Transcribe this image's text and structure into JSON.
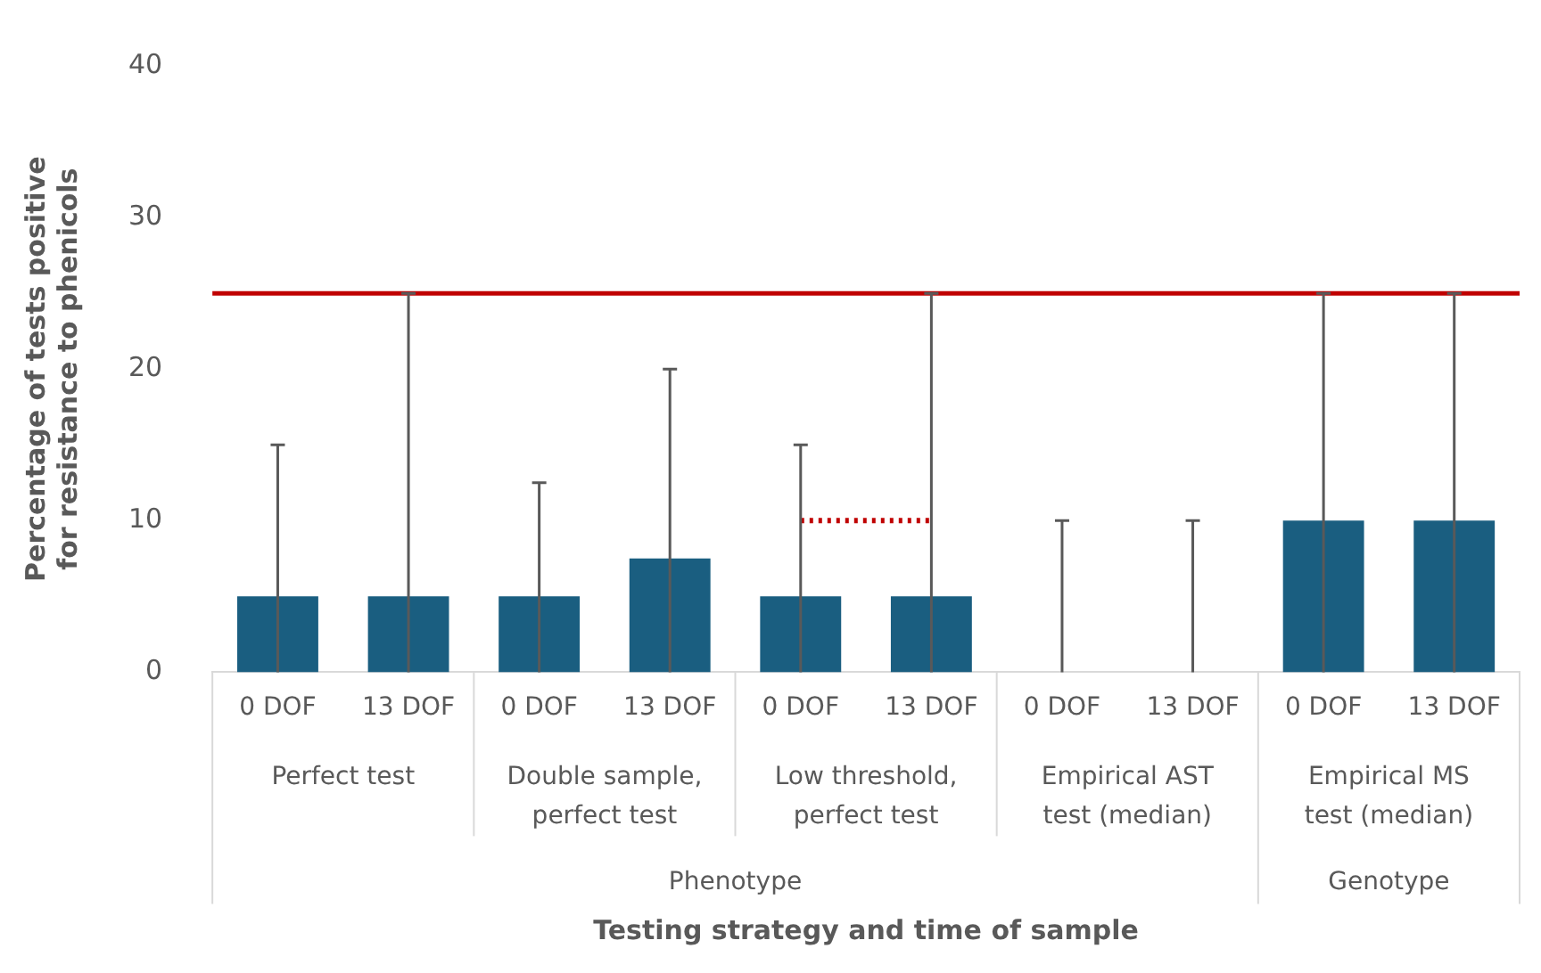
{
  "chart_data": {
    "type": "bar",
    "ylabel": "Percentage of tests positive for resistance to phenicols",
    "categories": [
      "0 DOF",
      "13 DOF",
      "0 DOF",
      "13 DOF",
      "0 DOF",
      "13 DOF",
      "0 DOF",
      "13 DOF",
      "0 DOF",
      "13 DOF"
    ],
    "series": [
      {
        "color": "#1a5e80",
        "values": [
          5,
          5,
          5,
          7.5,
          5,
          5,
          0,
          0,
          10,
          10
        ],
        "errors": [
          [
            0,
            15
          ],
          [
            0,
            25
          ],
          [
            0,
            12.5
          ],
          [
            0,
            20
          ],
          [
            0,
            15
          ],
          [
            0,
            25
          ],
          [
            0,
            10
          ],
          [
            0,
            10
          ],
          [
            0,
            25
          ],
          [
            0,
            25
          ]
        ]
      },
      {
        "type": "line",
        "color": "#c00000",
        "line_style": "dotted",
        "marker": "none",
        "values": [
          null,
          null,
          null,
          null,
          10,
          10,
          null,
          null,
          null,
          null
        ]
      }
    ],
    "ylim": [
      0,
      40
    ],
    "yticks": [
      0,
      10,
      20,
      30,
      40
    ],
    "grid": false,
    "legend": false,
    "ref_lines": [
      {
        "axis": "y",
        "value": 25,
        "color": "#c00000",
        "line_style": "solid"
      }
    ],
    "annotations": [
      "Perfect test",
      "Double sample, perfect test",
      "Low threshold, perfect test",
      "Empirical AST test (median)",
      "Empirical MS test (median)",
      "Phenotype",
      "Genotype",
      "Testing strategy and time of sample"
    ]
  }
}
